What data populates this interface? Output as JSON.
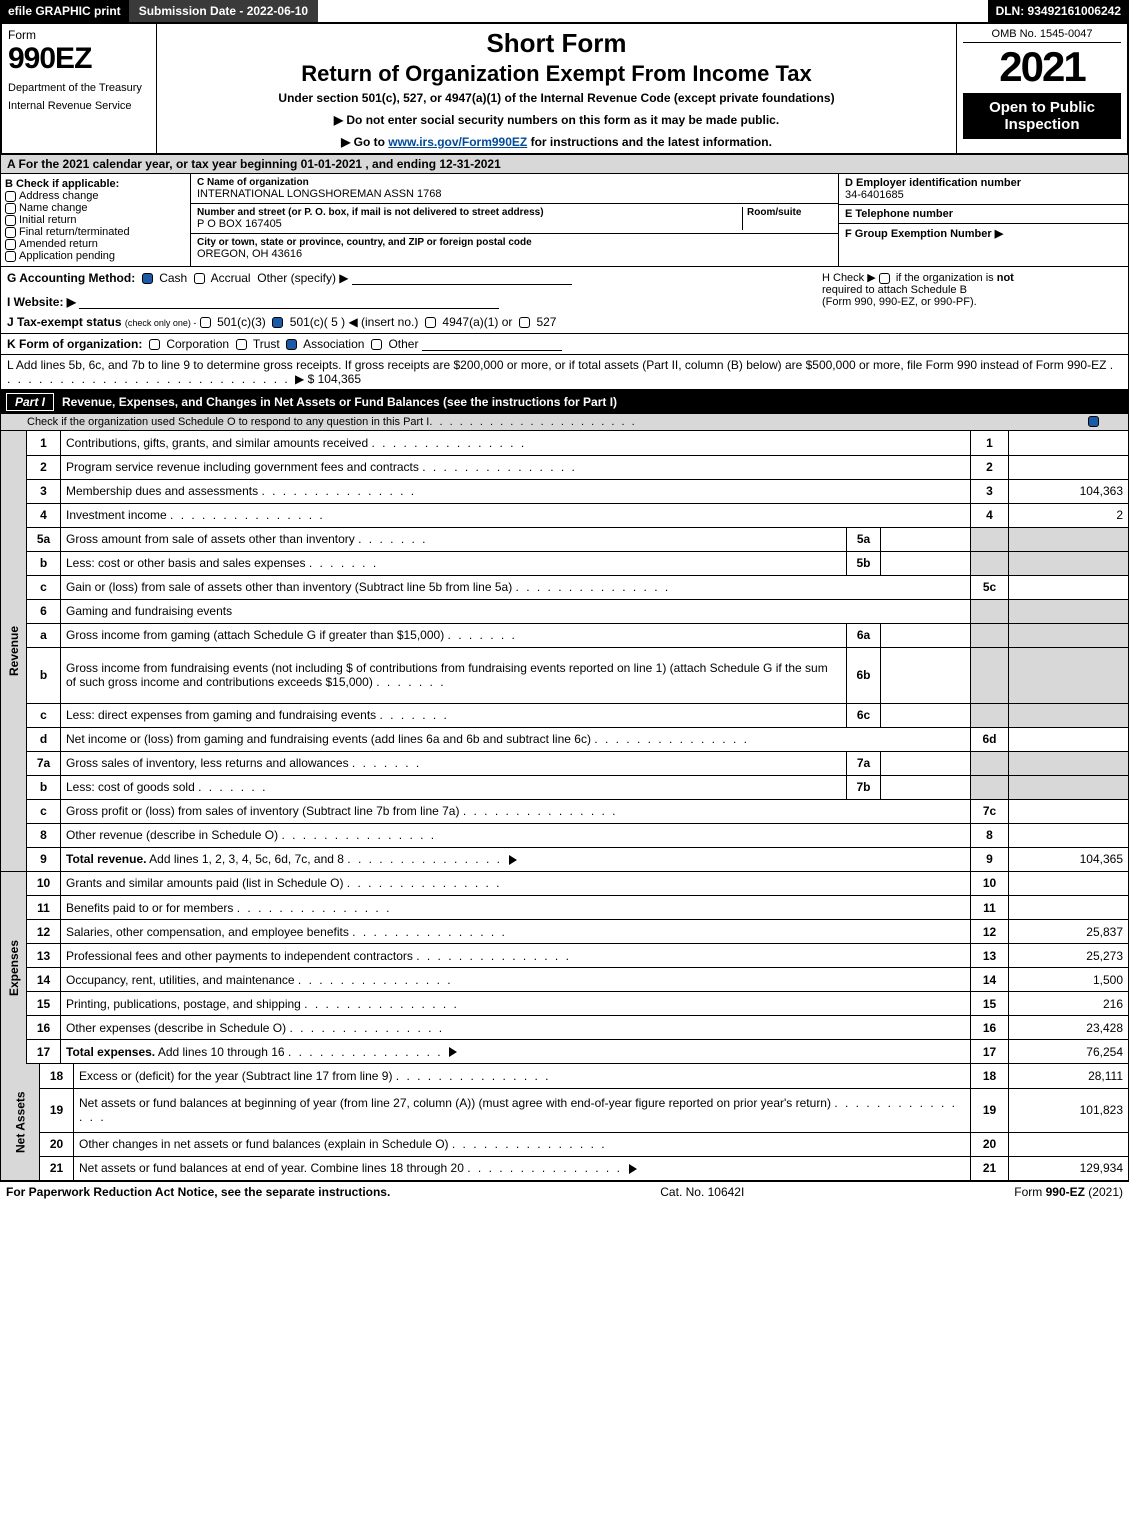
{
  "topbar": {
    "efile": "efile GRAPHIC print",
    "submission": "Submission Date - 2022-06-10",
    "dln": "DLN: 93492161006242"
  },
  "header": {
    "form_label": "Form",
    "form_number": "990EZ",
    "dept1": "Department of the Treasury",
    "dept2": "Internal Revenue Service",
    "short": "Short Form",
    "return": "Return of Organization Exempt From Income Tax",
    "under": "Under section 501(c), 527, or 4947(a)(1) of the Internal Revenue Code (except private foundations)",
    "arrow1": "▶ Do not enter social security numbers on this form as it may be made public.",
    "arrow2_pre": "▶ Go to ",
    "arrow2_link": "www.irs.gov/Form990EZ",
    "arrow2_post": " for instructions and the latest information.",
    "omb": "OMB No. 1545-0047",
    "year": "2021",
    "open": "Open to Public Inspection"
  },
  "sectionA": "A  For the 2021 calendar year, or tax year beginning 01-01-2021  , and ending 12-31-2021",
  "colB": {
    "title": "B  Check if applicable:",
    "items": [
      "Address change",
      "Name change",
      "Initial return",
      "Final return/terminated",
      "Amended return",
      "Application pending"
    ]
  },
  "colC": {
    "name_label": "C Name of organization",
    "name": "INTERNATIONAL LONGSHOREMAN ASSN 1768",
    "street_label": "Number and street (or P. O. box, if mail is not delivered to street address)",
    "room_label": "Room/suite",
    "street": "P O BOX 167405",
    "city_label": "City or town, state or province, country, and ZIP or foreign postal code",
    "city": "OREGON, OH  43616"
  },
  "colD": {
    "d_label": "D Employer identification number",
    "d_val": "34-6401685",
    "e_label": "E Telephone number",
    "e_val": "",
    "f_label": "F Group Exemption Number   ▶",
    "f_val": ""
  },
  "ghblock": {
    "g_label": "G Accounting Method:",
    "g_cash": "Cash",
    "g_accrual": "Accrual",
    "g_other": "Other (specify) ▶",
    "i_label": "I Website: ▶",
    "j_label": "J Tax-exempt status",
    "j_sub": "(check only one) -",
    "j_opts": [
      "501(c)(3)",
      "501(c)( 5 ) ◀ (insert no.)",
      "4947(a)(1) or",
      "527"
    ],
    "h_label": "H  Check ▶",
    "h_text1": "if the organization is ",
    "h_not": "not",
    "h_text2": "required to attach Schedule B",
    "h_text3": "(Form 990, 990-EZ, or 990-PF)."
  },
  "lineK": {
    "label": "K Form of organization:",
    "opts": [
      "Corporation",
      "Trust",
      "Association",
      "Other"
    ]
  },
  "lineL": {
    "text": "L Add lines 5b, 6c, and 7b to line 9 to determine gross receipts. If gross receipts are $200,000 or more, or if total assets (Part II, column (B) below) are $500,000 or more, file Form 990 instead of Form 990-EZ",
    "amount": "▶ $ 104,365"
  },
  "part1": {
    "label": "Part I",
    "title": "Revenue, Expenses, and Changes in Net Assets or Fund Balances (see the instructions for Part I)",
    "sub": "Check if the organization used Schedule O to respond to any question in this Part I"
  },
  "sidebars": {
    "rev": "Revenue",
    "exp": "Expenses",
    "net": "Net Assets"
  },
  "rows": [
    {
      "n": "1",
      "d": "Contributions, gifts, grants, and similar amounts received",
      "rn": "1",
      "amt": ""
    },
    {
      "n": "2",
      "d": "Program service revenue including government fees and contracts",
      "rn": "2",
      "amt": ""
    },
    {
      "n": "3",
      "d": "Membership dues and assessments",
      "rn": "3",
      "amt": "104,363"
    },
    {
      "n": "4",
      "d": "Investment income",
      "rn": "4",
      "amt": "2"
    },
    {
      "n": "5a",
      "d": "Gross amount from sale of assets other than inventory",
      "mid": "5a",
      "midamt": "",
      "shade": true
    },
    {
      "n": "b",
      "d": "Less: cost or other basis and sales expenses",
      "mid": "5b",
      "midamt": "",
      "shade": true
    },
    {
      "n": "c",
      "d": "Gain or (loss) from sale of assets other than inventory (Subtract line 5b from line 5a)",
      "rn": "5c",
      "amt": ""
    },
    {
      "n": "6",
      "d": "Gaming and fundraising events",
      "shadeRight": true
    },
    {
      "n": "a",
      "d": "Gross income from gaming (attach Schedule G if greater than $15,000)",
      "mid": "6a",
      "midamt": "",
      "shade": true
    },
    {
      "n": "b",
      "d": "Gross income from fundraising events (not including $                          of contributions from fundraising events reported on line 1) (attach Schedule G if the sum of such gross income and contributions exceeds $15,000)",
      "mid": "6b",
      "midamt": "",
      "shade": true,
      "tall": true
    },
    {
      "n": "c",
      "d": "Less: direct expenses from gaming and fundraising events",
      "mid": "6c",
      "midamt": "",
      "shade": true
    },
    {
      "n": "d",
      "d": "Net income or (loss) from gaming and fundraising events (add lines 6a and 6b and subtract line 6c)",
      "rn": "6d",
      "amt": ""
    },
    {
      "n": "7a",
      "d": "Gross sales of inventory, less returns and allowances",
      "mid": "7a",
      "midamt": "",
      "shade": true
    },
    {
      "n": "b",
      "d": "Less: cost of goods sold",
      "mid": "7b",
      "midamt": "",
      "shade": true
    },
    {
      "n": "c",
      "d": "Gross profit or (loss) from sales of inventory (Subtract line 7b from line 7a)",
      "rn": "7c",
      "amt": ""
    },
    {
      "n": "8",
      "d": "Other revenue (describe in Schedule O)",
      "rn": "8",
      "amt": ""
    },
    {
      "n": "9",
      "d": "Total revenue. Add lines 1, 2, 3, 4, 5c, 6d, 7c, and 8",
      "rn": "9",
      "amt": "104,365",
      "bold": true,
      "arrow": true
    }
  ],
  "exp_rows": [
    {
      "n": "10",
      "d": "Grants and similar amounts paid (list in Schedule O)",
      "rn": "10",
      "amt": ""
    },
    {
      "n": "11",
      "d": "Benefits paid to or for members",
      "rn": "11",
      "amt": ""
    },
    {
      "n": "12",
      "d": "Salaries, other compensation, and employee benefits",
      "rn": "12",
      "amt": "25,837"
    },
    {
      "n": "13",
      "d": "Professional fees and other payments to independent contractors",
      "rn": "13",
      "amt": "25,273"
    },
    {
      "n": "14",
      "d": "Occupancy, rent, utilities, and maintenance",
      "rn": "14",
      "amt": "1,500"
    },
    {
      "n": "15",
      "d": "Printing, publications, postage, and shipping",
      "rn": "15",
      "amt": "216"
    },
    {
      "n": "16",
      "d": "Other expenses (describe in Schedule O)",
      "rn": "16",
      "amt": "23,428"
    },
    {
      "n": "17",
      "d": "Total expenses. Add lines 10 through 16",
      "rn": "17",
      "amt": "76,254",
      "bold": true,
      "arrow": true
    }
  ],
  "net_rows": [
    {
      "n": "18",
      "d": "Excess or (deficit) for the year (Subtract line 17 from line 9)",
      "rn": "18",
      "amt": "28,111"
    },
    {
      "n": "19",
      "d": "Net assets or fund balances at beginning of year (from line 27, column (A)) (must agree with end-of-year figure reported on prior year's return)",
      "rn": "19",
      "amt": "101,823",
      "tall": true
    },
    {
      "n": "20",
      "d": "Other changes in net assets or fund balances (explain in Schedule O)",
      "rn": "20",
      "amt": ""
    },
    {
      "n": "21",
      "d": "Net assets or fund balances at end of year. Combine lines 18 through 20",
      "rn": "21",
      "amt": "129,934",
      "arrow": true
    }
  ],
  "footer": {
    "left": "For Paperwork Reduction Act Notice, see the separate instructions.",
    "mid": "Cat. No. 10642I",
    "right_pre": "Form ",
    "right_bold": "990-EZ",
    "right_post": " (2021)"
  },
  "colors": {
    "topbar_black": "#000000",
    "topbar_gray": "#3a3a3a",
    "shade": "#d8d8d8",
    "check_blue": "#1a5ba8",
    "link": "#004b9b"
  }
}
